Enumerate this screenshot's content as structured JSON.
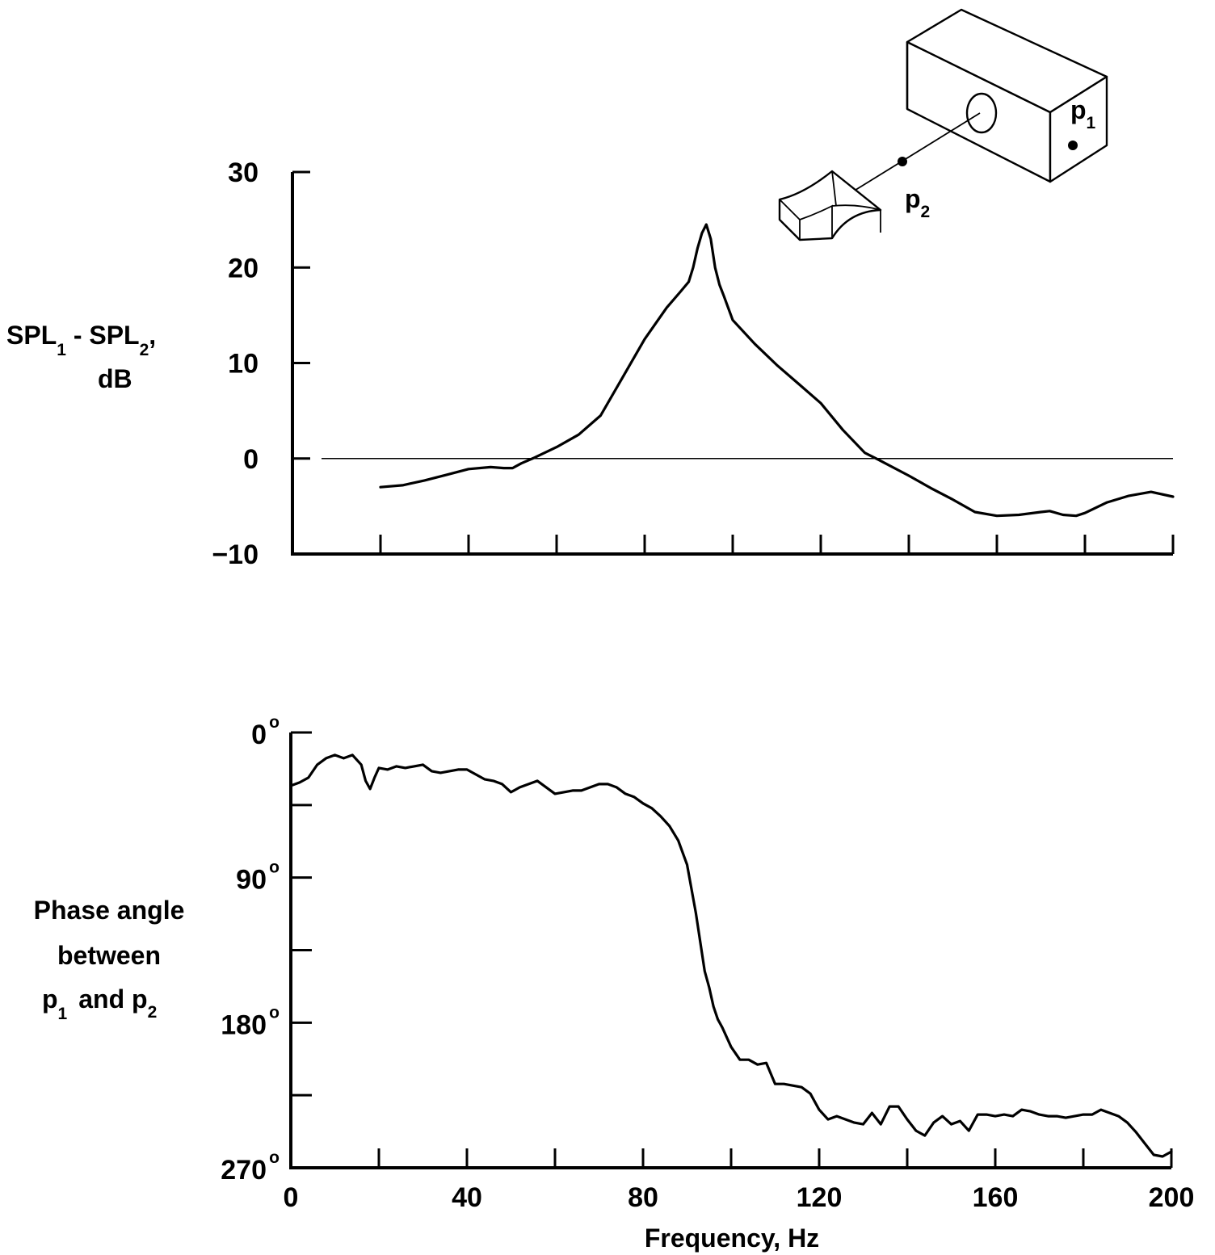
{
  "chart_data": [
    {
      "type": "line",
      "ylabel_line1": "SPL",
      "ylabel_sub1": "1",
      "ylabel_mid": " - SPL",
      "ylabel_sub2": "2",
      "ylabel_tail": ",",
      "ylabel_line2": "dB",
      "ylim": [
        -10,
        30
      ],
      "yticks": [
        30,
        20,
        10,
        0,
        -10
      ],
      "xlim": [
        0,
        200
      ],
      "xticks": [
        20,
        40,
        60,
        80,
        100,
        120,
        140,
        160,
        180,
        200
      ],
      "reference_line": 0,
      "series": [
        {
          "x": [
            20,
            25,
            30,
            35,
            40,
            45,
            48,
            50,
            52,
            55,
            60,
            65,
            70,
            75,
            80,
            85,
            88,
            90,
            91,
            92,
            93,
            94,
            95,
            96,
            97,
            98,
            100,
            105,
            110,
            115,
            120,
            125,
            130,
            133,
            140,
            145,
            150,
            155,
            160,
            165,
            170,
            172,
            175,
            178,
            180,
            185,
            190,
            195,
            200
          ],
          "y": [
            -3,
            -2.8,
            -2.3,
            -1.7,
            -1.1,
            -0.9,
            -1.0,
            -1.0,
            -0.5,
            0.1,
            1.2,
            2.5,
            4.5,
            8.5,
            12.5,
            15.8,
            17.4,
            18.5,
            20.0,
            22.0,
            23.6,
            24.5,
            23.0,
            20.0,
            18.2,
            17.0,
            14.5,
            12.0,
            9.8,
            7.8,
            5.8,
            3.0,
            0.6,
            -0.1,
            -1.8,
            -3.1,
            -4.3,
            -5.6,
            -6.0,
            -5.9,
            -5.6,
            -5.5,
            -5.9,
            -6.0,
            -5.7,
            -4.6,
            -3.9,
            -3.5,
            -4.0
          ]
        }
      ]
    },
    {
      "type": "line",
      "ylabel_lines": [
        "Phase  angle",
        "between"
      ],
      "ylabel_p1": "p",
      "ylabel_p1_sub": "1",
      "ylabel_and": "and p",
      "ylabel_p2_sub": "2",
      "xlabel": "Frequency, Hz",
      "ylim": [
        0,
        270
      ],
      "y_inverted": true,
      "ytick_values": [
        0,
        45,
        90,
        135,
        180,
        225,
        270
      ],
      "ytick_labels": [
        {
          "value": 0,
          "text": "0",
          "deg": "o"
        },
        {
          "value": 90,
          "text": "90",
          "deg": "o"
        },
        {
          "value": 180,
          "text": "180",
          "deg": "o"
        },
        {
          "value": 270,
          "text": "270",
          "deg": "o"
        }
      ],
      "xlim": [
        0,
        200
      ],
      "xtick_values": [
        0,
        20,
        40,
        60,
        80,
        100,
        120,
        140,
        160,
        180,
        200
      ],
      "xtick_labels": [
        "0",
        "40",
        "80",
        "120",
        "160",
        "200"
      ],
      "xtick_label_values": [
        0,
        40,
        80,
        120,
        160,
        200
      ],
      "series": [
        {
          "x": [
            0,
            2,
            4,
            6,
            8,
            10,
            12,
            14,
            16,
            17,
            18,
            19,
            20,
            22,
            24,
            26,
            28,
            30,
            32,
            34,
            36,
            38,
            40,
            42,
            44,
            46,
            48,
            50,
            52,
            54,
            56,
            58,
            60,
            62,
            64,
            66,
            68,
            70,
            72,
            74,
            76,
            78,
            80,
            82,
            84,
            86,
            88,
            90,
            92,
            94,
            95,
            96,
            97,
            98,
            100,
            102,
            104,
            106,
            108,
            110,
            112,
            114,
            116,
            118,
            120,
            122,
            124,
            126,
            128,
            130,
            132,
            134,
            136,
            138,
            140,
            142,
            144,
            146,
            148,
            150,
            152,
            154,
            156,
            158,
            160,
            162,
            164,
            166,
            168,
            170,
            172,
            174,
            176,
            178,
            180,
            182,
            184,
            186,
            188,
            190,
            192,
            194,
            196,
            198,
            200
          ],
          "y": [
            33,
            31,
            28,
            20,
            16,
            14,
            16,
            14,
            20,
            30,
            35,
            28,
            22,
            23,
            21,
            22,
            21,
            20,
            24,
            25,
            24,
            23,
            23,
            26,
            29,
            30,
            32,
            37,
            34,
            32,
            30,
            34,
            38,
            37,
            36,
            36,
            34,
            32,
            32,
            34,
            38,
            40,
            44,
            47,
            52,
            58,
            67,
            82,
            112,
            148,
            158,
            170,
            178,
            183,
            195,
            203,
            203,
            206,
            205,
            218,
            218,
            219,
            220,
            224,
            234,
            240,
            238,
            240,
            242,
            243,
            236,
            243,
            232,
            232,
            240,
            247,
            250,
            242,
            238,
            243,
            241,
            247,
            237,
            237,
            238,
            237,
            238,
            234,
            235,
            237,
            238,
            238,
            239,
            238,
            237,
            237,
            234,
            236,
            238,
            242,
            248,
            255,
            262,
            263,
            260
          ]
        }
      ]
    }
  ],
  "inset": {
    "label_p1": "p",
    "label_p1_sub": "1",
    "label_p2": "p",
    "label_p2_sub": "2"
  }
}
